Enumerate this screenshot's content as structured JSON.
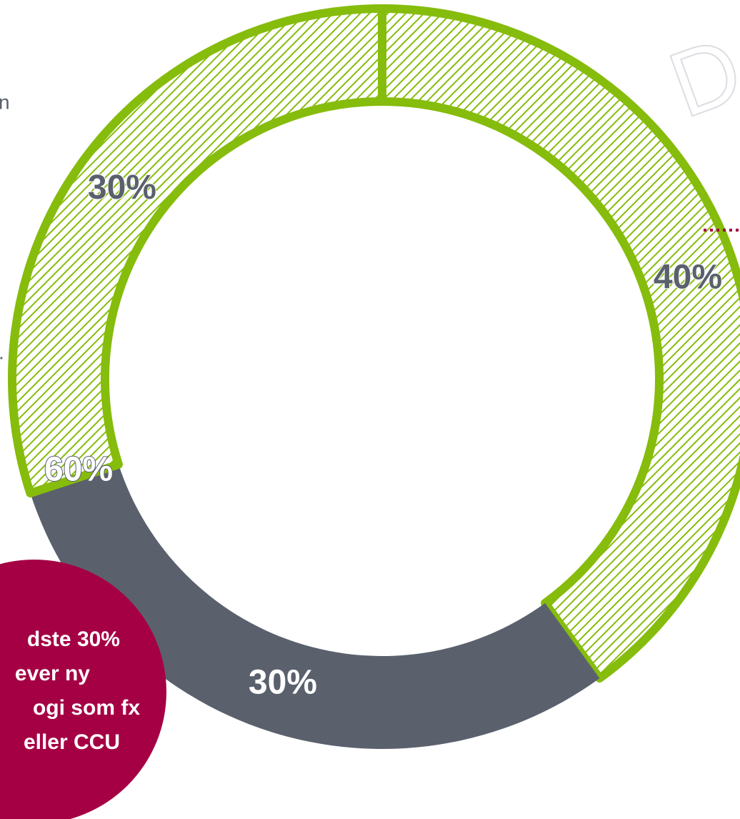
{
  "chart_data": {
    "type": "donut",
    "values": [
      40,
      30,
      30
    ],
    "value_labels": [
      "40%",
      "30%",
      "30%"
    ],
    "colors": [
      "#86bc0c",
      "#5a616d",
      "#86bc0c"
    ],
    "hatched": [
      true,
      false,
      true
    ],
    "annotations": [
      "60%"
    ],
    "callout": [
      "dste 30%",
      "ever ny",
      "ogi som fx",
      "eller CCU"
    ],
    "side_text": [
      "n",
      "."
    ],
    "watermark": "D"
  }
}
